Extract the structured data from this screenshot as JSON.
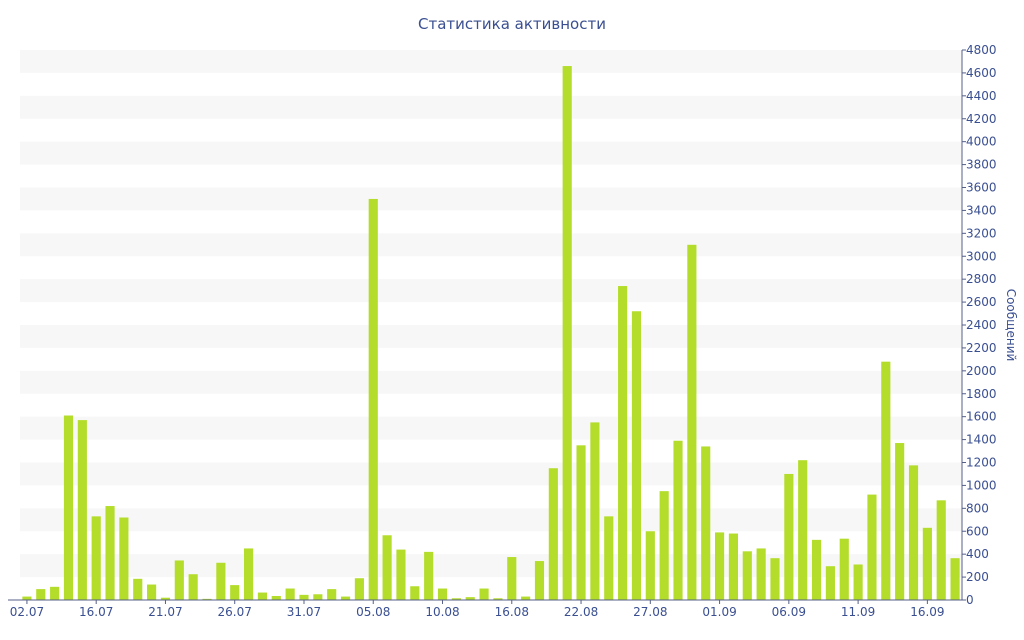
{
  "chart_data": {
    "type": "bar",
    "title": "Статистика активности",
    "xlabel": "",
    "ylabel": "Сообщений",
    "y_axis_position": "right",
    "ylim": [
      0,
      4800
    ],
    "y_ticks": [
      0,
      200,
      400,
      600,
      800,
      1000,
      1200,
      1400,
      1600,
      1800,
      2000,
      2200,
      2400,
      2600,
      2800,
      3000,
      3200,
      3400,
      3600,
      3800,
      4000,
      4200,
      4400,
      4600,
      4800
    ],
    "x_ticks": [
      {
        "label": "02.07",
        "index": 0
      },
      {
        "label": "16.07",
        "index": 5
      },
      {
        "label": "21.07",
        "index": 10
      },
      {
        "label": "26.07",
        "index": 15
      },
      {
        "label": "31.07",
        "index": 20
      },
      {
        "label": "05.08",
        "index": 25
      },
      {
        "label": "10.08",
        "index": 30
      },
      {
        "label": "16.08",
        "index": 35
      },
      {
        "label": "22.08",
        "index": 40
      },
      {
        "label": "27.08",
        "index": 45
      },
      {
        "label": "01.09",
        "index": 50
      },
      {
        "label": "06.09",
        "index": 55
      },
      {
        "label": "11.09",
        "index": 60
      },
      {
        "label": "16.09",
        "index": 65
      }
    ],
    "values": [
      30,
      95,
      115,
      1610,
      1570,
      730,
      820,
      720,
      185,
      135,
      20,
      345,
      225,
      10,
      325,
      130,
      450,
      65,
      35,
      100,
      45,
      50,
      95,
      30,
      190,
      3500,
      565,
      440,
      120,
      420,
      100,
      15,
      25,
      100,
      15,
      375,
      30,
      340,
      1150,
      4660,
      1350,
      1550,
      730,
      2740,
      2520,
      600,
      950,
      1390,
      3100,
      1340,
      590,
      580,
      425,
      450,
      365,
      1100,
      1220,
      525,
      295,
      535,
      310,
      920,
      2080,
      1370,
      1175,
      630,
      870,
      365
    ],
    "colors": {
      "bar": "#b4dd2b",
      "band": "#f7f7f7",
      "text": "#3a4f91"
    },
    "grid": "alternating horizontal bands"
  }
}
